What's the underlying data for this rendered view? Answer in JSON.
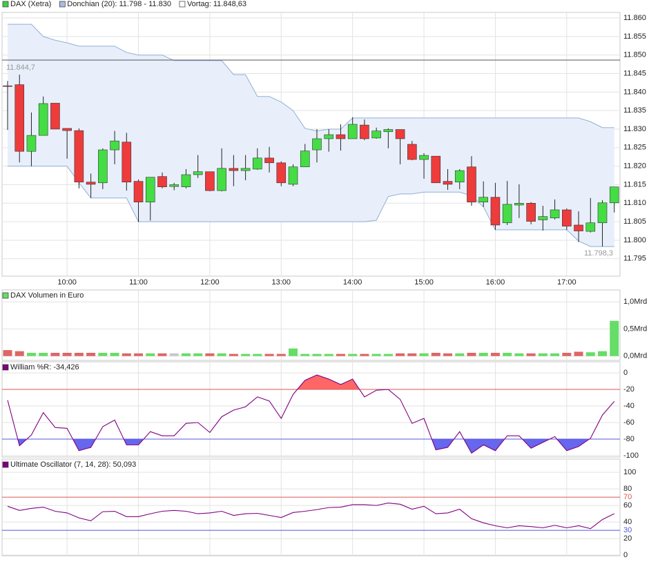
{
  "chart_data": [
    {
      "type": "candlestick",
      "legend": [
        {
          "name": "DAX (Xetra)",
          "color": "#44cc44"
        },
        {
          "name": "Donchian (20): 11.798 - 11.830",
          "color": "#a8bce0"
        },
        {
          "name": "Vortag: 11.848,63",
          "color": "#ffffff"
        }
      ],
      "categories": [
        null,
        null,
        null,
        null,
        null,
        "10:00",
        null,
        null,
        null,
        null,
        null,
        "11:00",
        null,
        null,
        null,
        null,
        null,
        "12:00",
        null,
        null,
        null,
        null,
        null,
        "13:00",
        null,
        null,
        null,
        null,
        null,
        "14:00",
        null,
        null,
        null,
        null,
        null,
        "15:00",
        null,
        null,
        null,
        null,
        null,
        "16:00",
        null,
        null,
        null,
        null,
        null,
        "17:00",
        null,
        null,
        null,
        null
      ],
      "open": [
        11841.7,
        11842,
        11824,
        11828.3,
        11837,
        11830.2,
        11829.6,
        11815.7,
        11815.5,
        11824.4,
        11826.5,
        11815.9,
        11810.3,
        11817.2,
        11814.5,
        11814.4,
        11817.7,
        11818.5,
        11813.4,
        11819.4,
        11818.8,
        11819.2,
        11822.2,
        11820.9,
        11815.1,
        11819.8,
        11824.4,
        11827.4,
        11828.5,
        11827.4,
        11831.1,
        11827.6,
        11829.3,
        11829.9,
        11825.9,
        11821.8,
        11822.7,
        11815.9,
        11815.7,
        11819.8,
        11810.3,
        11811.6,
        11804.7,
        11809.5,
        11810,
        11805.5,
        11806,
        11808.2,
        11804.1,
        11802.4,
        11804.7,
        11810.1
      ],
      "high": [
        11843,
        11844.7,
        11834.5,
        11838.8,
        11837,
        11830.2,
        11830.2,
        11818,
        11824.8,
        11829.5,
        11829,
        11816.4,
        11817,
        11818.3,
        11815.5,
        11819.2,
        11823,
        11818.5,
        11824.8,
        11823,
        11823,
        11824.8,
        11825.2,
        11821.3,
        11820.5,
        11826,
        11830,
        11830,
        11831.3,
        11833.2,
        11832.6,
        11830.4,
        11830.2,
        11829.9,
        11826.8,
        11823.5,
        11822.7,
        11819.2,
        11819.2,
        11822.7,
        11815.9,
        11815.5,
        11816,
        11815.1,
        11810.3,
        11809.3,
        11811,
        11808.6,
        11807.8,
        11811.4,
        11810.8,
        11814.4
      ],
      "low": [
        11829.8,
        11821,
        11820,
        11828.3,
        11830,
        11822,
        11814,
        11811.4,
        11813.8,
        11820.5,
        11813.4,
        11804.9,
        11805.3,
        11814,
        11813.5,
        11814,
        11816.8,
        11813.2,
        11813.2,
        11814.6,
        11816.2,
        11819,
        11818.3,
        11814.6,
        11814.6,
        11819.8,
        11821,
        11823.9,
        11824.2,
        11827.4,
        11827,
        11827.4,
        11824.8,
        11820.5,
        11821.6,
        11816.6,
        11815.5,
        11813.6,
        11813.8,
        11809.3,
        11809,
        11802.8,
        11804.1,
        11806,
        11804.3,
        11802.6,
        11805.6,
        11802.8,
        11799.5,
        11802.1,
        11798.3,
        11807.5
      ],
      "close": [
        11841.7,
        11824,
        11828.3,
        11836.9,
        11830,
        11829.6,
        11815.7,
        11815.1,
        11824.4,
        11826.8,
        11815.7,
        11810.3,
        11817,
        11814.4,
        11815,
        11817.7,
        11818.5,
        11813.4,
        11819.4,
        11818.8,
        11819.4,
        11822.2,
        11820.9,
        11815.5,
        11819.8,
        11824.1,
        11827.4,
        11828.5,
        11827.4,
        11831.3,
        11827.4,
        11829.5,
        11829.9,
        11827.4,
        11821.8,
        11822.9,
        11815.5,
        11815.1,
        11818.8,
        11810.3,
        11811.6,
        11804.1,
        11809.7,
        11810,
        11805.1,
        11806.4,
        11808.2,
        11803.8,
        11802.5,
        11804.7,
        11810.1,
        11814.4
      ],
      "donchian_upper": [
        11858.3,
        11858.3,
        11858.3,
        11855,
        11854,
        11853.3,
        11852.4,
        11852.4,
        11852.4,
        11852.4,
        11850.7,
        11850,
        11850,
        11850,
        11848.5,
        11848.5,
        11848.5,
        11848.5,
        11848.5,
        11844.7,
        11844.7,
        11838.8,
        11838.8,
        11837.3,
        11835,
        11830.2,
        11829.5,
        11830,
        11830,
        11833,
        11833,
        11833,
        11833,
        11833,
        11833,
        11833,
        11833,
        11833,
        11833,
        11833,
        11833,
        11833,
        11833,
        11833,
        11833,
        11833,
        11833,
        11833,
        11833,
        11832,
        11830.4,
        11830.4
      ],
      "donchian_lower": [
        11820,
        11820,
        11820,
        11820,
        11820,
        11820,
        11815.5,
        11811.4,
        11811.4,
        11811.4,
        11811.4,
        11805,
        11805,
        11805,
        11805,
        11805,
        11805,
        11805,
        11805,
        11805,
        11805,
        11805,
        11805,
        11805,
        11805,
        11805,
        11805,
        11805,
        11805,
        11805,
        11805,
        11805.4,
        11811.8,
        11812.5,
        11812.5,
        11813,
        11813,
        11813,
        11813,
        11812,
        11809,
        11802.8,
        11802.8,
        11802.8,
        11802.8,
        11802.8,
        11802.8,
        11802.8,
        11799.8,
        11798.3,
        11798.3,
        11798.3
      ],
      "prev_close": 11848.63,
      "annotations": [
        {
          "text": "11.844,7",
          "value": 11844.7
        },
        {
          "text": "11.798,3",
          "value": 11798.3
        }
      ],
      "up_color": "#44dd44",
      "down_color": "#ee3b3b",
      "band_color": "#e8effb",
      "band_line_color": "#8fb0d4",
      "ylim": [
        11790.3,
        11861.5
      ],
      "yticks": [
        {
          "value": 11860,
          "label": "11.860"
        },
        {
          "value": 11855,
          "label": "11.855"
        },
        {
          "value": 11850,
          "label": "11.850"
        },
        {
          "value": 11845,
          "label": "11.845"
        },
        {
          "value": 11840,
          "label": "11.840"
        },
        {
          "value": 11835,
          "label": "11.835"
        },
        {
          "value": 11830,
          "label": "11.830"
        },
        {
          "value": 11825,
          "label": "11.825"
        },
        {
          "value": 11820,
          "label": "11.820"
        },
        {
          "value": 11815,
          "label": "11.815"
        },
        {
          "value": 11810,
          "label": "11.810"
        },
        {
          "value": 11805,
          "label": "11.805"
        },
        {
          "value": 11800,
          "label": "11.800"
        },
        {
          "value": 11795,
          "label": "11.795"
        }
      ],
      "grid": true
    },
    {
      "type": "bar",
      "title": "DAX Volumen in Euro",
      "color": "#66dd66",
      "values": [
        0.11,
        0.09,
        0.06,
        0.06,
        0.06,
        0.06,
        0.06,
        0.06,
        0.06,
        0.06,
        0.05,
        0.05,
        0.05,
        0.05,
        0.05,
        0.05,
        0.05,
        0.05,
        0.05,
        0.04,
        0.04,
        0.04,
        0.04,
        0.04,
        0.14,
        0.04,
        0.04,
        0.04,
        0.04,
        0.04,
        0.04,
        0.04,
        0.04,
        0.05,
        0.05,
        0.05,
        0.06,
        0.05,
        0.05,
        0.06,
        0.06,
        0.06,
        0.06,
        0.05,
        0.05,
        0.05,
        0.05,
        0.06,
        0.08,
        0.07,
        0.09,
        0.65
      ],
      "colors": [
        "#dd6666",
        "#dd6666",
        "#66dd66",
        "#66dd66",
        "#dd6666",
        "#dd6666",
        "#dd6666",
        "#dd6666",
        "#66dd66",
        "#66dd66",
        "#dd6666",
        "#dd6666",
        "#66dd66",
        "#dd6666",
        "#c8c8c8",
        "#66dd66",
        "#66dd66",
        "#dd6666",
        "#66dd66",
        "#dd6666",
        "#66dd66",
        "#66dd66",
        "#dd6666",
        "#dd6666",
        "#66dd66",
        "#66dd66",
        "#66dd66",
        "#66dd66",
        "#dd6666",
        "#66dd66",
        "#dd6666",
        "#66dd66",
        "#66dd66",
        "#dd6666",
        "#dd6666",
        "#66dd66",
        "#dd6666",
        "#dd6666",
        "#66dd66",
        "#dd6666",
        "#66dd66",
        "#dd6666",
        "#66dd66",
        "#66dd66",
        "#dd6666",
        "#66dd66",
        "#66dd66",
        "#dd6666",
        "#dd6666",
        "#66dd66",
        "#66dd66",
        "#66dd66"
      ],
      "ylim": [
        -0.08,
        1.22
      ],
      "yticks": [
        {
          "value": 1.0,
          "label": "1,0Mrd"
        },
        {
          "value": 0.5,
          "label": "0,5Mrd"
        },
        {
          "value": 0,
          "label": "0,0Mrd"
        }
      ]
    },
    {
      "type": "line",
      "title": "William %R: -34,426",
      "color": "#800080",
      "values": [
        -33,
        -88,
        -75,
        -48,
        -66,
        -67,
        -94,
        -90,
        -65,
        -57,
        -87,
        -87,
        -71,
        -76,
        -76,
        -61,
        -60,
        -72,
        -53,
        -45,
        -41,
        -29,
        -34,
        -55,
        -26,
        -9,
        -2.5,
        -7.5,
        -14,
        -7.5,
        -29,
        -21,
        -20,
        -32,
        -61,
        -55,
        -93,
        -90,
        -71,
        -97,
        -87,
        -94,
        -76,
        -76,
        -91,
        -84,
        -77,
        -94,
        -89,
        -79,
        -51,
        -34.426
      ],
      "ylim": [
        -101.7,
        13.4
      ],
      "yticks": [
        0,
        -20,
        -40,
        -60,
        -80,
        -100
      ],
      "ref_lines": [
        {
          "value": -20,
          "color": "#dd5555",
          "fill": "#ff6666",
          "fill_side": "above"
        },
        {
          "value": -80,
          "color": "#5555dd",
          "fill": "#6666ee",
          "fill_side": "below"
        }
      ]
    },
    {
      "type": "line",
      "title": "Ultimate Oscillator (7, 14, 28): 50,093",
      "color": "#800080",
      "values": [
        59,
        54,
        56.5,
        58,
        53,
        51,
        45,
        41.5,
        52.5,
        53,
        46.5,
        46.5,
        50,
        53,
        54,
        53,
        50,
        51,
        53,
        48,
        50,
        50.5,
        48,
        45.5,
        51.5,
        53,
        55,
        57.5,
        58,
        61,
        61,
        60,
        63,
        61.5,
        55.5,
        59,
        50,
        51,
        55.5,
        44,
        39,
        35.5,
        33,
        35.5,
        34.5,
        33,
        36,
        33,
        35.5,
        32,
        43,
        50.093
      ],
      "ylim": [
        -0.8,
        116
      ],
      "yticks": [
        100,
        80,
        60,
        40,
        20,
        0
      ],
      "ref_lines": [
        {
          "value": 70,
          "color": "#dd5555",
          "labeled": true
        },
        {
          "value": 30,
          "color": "#5555dd",
          "labeled": true
        }
      ]
    }
  ]
}
